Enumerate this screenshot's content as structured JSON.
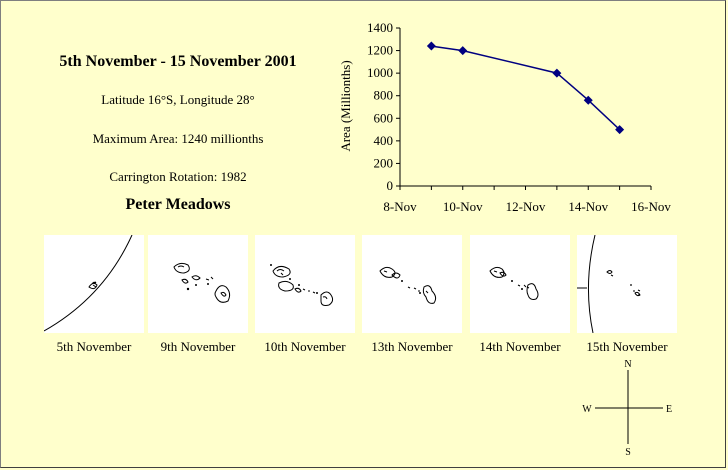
{
  "info": {
    "title": "5th November - 15 November 2001",
    "latitude": "Latitude 16°S, Longitude 28°",
    "max_area": "Maximum Area: 1240 millionths",
    "carrington": "Carrington Rotation: 1982",
    "author": "Peter Meadows"
  },
  "chart_data": {
    "type": "line",
    "x": [
      "2001-11-09",
      "2001-11-10",
      "2001-11-13",
      "2001-11-14",
      "2001-11-15"
    ],
    "y": [
      1240,
      1200,
      1000,
      760,
      500
    ],
    "xlim": [
      "2001-11-08",
      "2001-11-16"
    ],
    "ylim": [
      0,
      1400
    ],
    "x_ticks": [
      "8-Nov",
      "10-Nov",
      "12-Nov",
      "14-Nov",
      "16-Nov"
    ],
    "y_ticks": [
      "0",
      "200",
      "400",
      "600",
      "800",
      "1000",
      "1200",
      "1400"
    ],
    "ylabel": "Area (Millionths)",
    "xlabel": "",
    "title": "",
    "grid": false,
    "marker": "diamond",
    "color": "#000080"
  },
  "panels": [
    {
      "caption": "5th November"
    },
    {
      "caption": "9th November"
    },
    {
      "caption": "10th November"
    },
    {
      "caption": "13th November"
    },
    {
      "caption": "14th November"
    },
    {
      "caption": "15th November"
    }
  ],
  "compass": {
    "n": "N",
    "s": "S",
    "e": "E",
    "w": "W"
  }
}
